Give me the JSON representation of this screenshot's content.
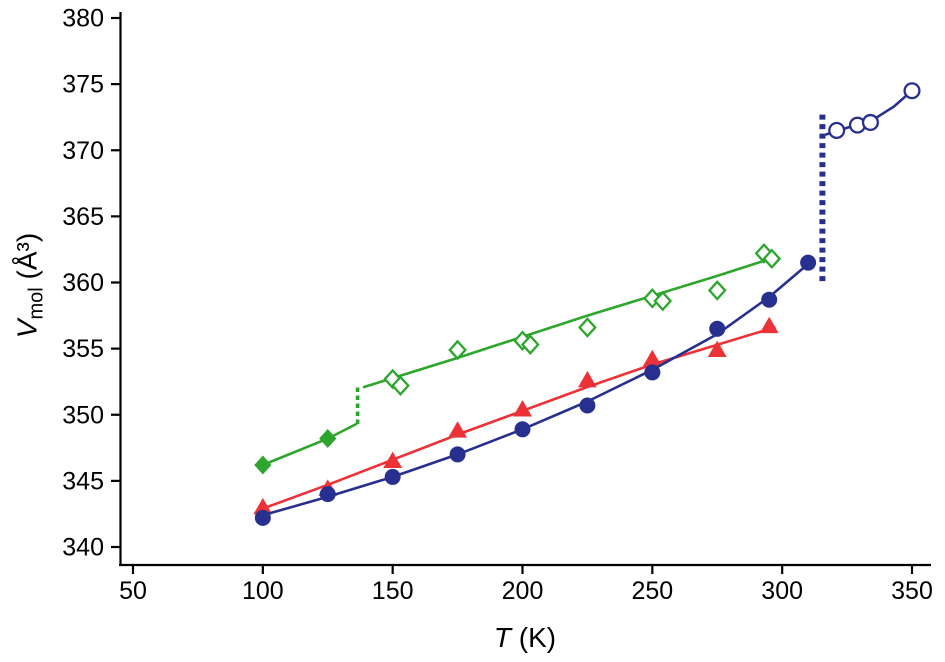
{
  "figure": {
    "background": "#ffffff",
    "axis_color": "#000000",
    "xlabel": {
      "symbol": "T",
      "units": " (K)"
    },
    "ylabel": {
      "symbol": "V",
      "subscript": "mol",
      "units": " (Å³)"
    }
  },
  "chart_data": {
    "type": "scatter",
    "title": "",
    "xlabel": "T (K)",
    "ylabel": "Vmol (Å³)",
    "xlim": [
      50,
      350
    ],
    "ylim": [
      340,
      380
    ],
    "x_ticks": [
      50,
      100,
      150,
      200,
      250,
      300,
      350
    ],
    "y_ticks": [
      340,
      345,
      350,
      355,
      360,
      365,
      370,
      375,
      380
    ],
    "grid": false,
    "legend": false,
    "series": [
      {
        "name": "green-filled-diamonds-low-T",
        "color": "#2ca62c",
        "marker": "diamond",
        "fill": "filled",
        "line_width": 2.6,
        "marker_points": [
          [
            100,
            346.2
          ],
          [
            125,
            348.2
          ]
        ],
        "line_points": [
          [
            100,
            346.2
          ],
          [
            125,
            348.2
          ],
          [
            136,
            349.3
          ]
        ]
      },
      {
        "name": "green-phase-transition-dashed",
        "type": "transition",
        "color": "#2ca62c",
        "x": 136.5,
        "y_from": 349.3,
        "y_to": 352.2,
        "line_width": 3.6,
        "dash": "4.5 3.5"
      },
      {
        "name": "green-open-diamonds-high-T",
        "color": "#2ca62c",
        "marker": "diamond",
        "fill": "open",
        "line_width": 2.6,
        "marker_points": [
          [
            150,
            352.7
          ],
          [
            153,
            352.2
          ],
          [
            175,
            354.9
          ],
          [
            200,
            355.6
          ],
          [
            203,
            355.3
          ],
          [
            225,
            356.6
          ],
          [
            250,
            358.8
          ],
          [
            254,
            358.6
          ],
          [
            275,
            359.4
          ],
          [
            293,
            362.2
          ],
          [
            296,
            361.8
          ]
        ],
        "line_points": [
          [
            139,
            352.1
          ],
          [
            175,
            354.3
          ],
          [
            225,
            357.5
          ],
          [
            275,
            360.5
          ],
          [
            297,
            361.9
          ]
        ]
      },
      {
        "name": "red-filled-triangles",
        "color": "#ed3237",
        "marker": "triangle",
        "fill": "filled",
        "line_width": 2.6,
        "marker_points": [
          [
            100,
            343.0
          ],
          [
            125,
            344.4
          ],
          [
            150,
            346.5
          ],
          [
            175,
            348.8
          ],
          [
            200,
            350.4
          ],
          [
            225,
            352.6
          ],
          [
            250,
            354.2
          ],
          [
            275,
            354.9
          ],
          [
            295,
            356.7
          ]
        ],
        "line_points": [
          [
            100,
            342.9
          ],
          [
            125,
            344.7
          ],
          [
            150,
            346.6
          ],
          [
            175,
            348.5
          ],
          [
            200,
            350.3
          ],
          [
            225,
            352.1
          ],
          [
            250,
            353.8
          ],
          [
            275,
            355.3
          ],
          [
            297,
            356.6
          ]
        ]
      },
      {
        "name": "blue-filled-circles-low-T",
        "color": "#28308f",
        "marker": "circle",
        "fill": "filled",
        "line_width": 2.6,
        "marker_points": [
          [
            100,
            342.2
          ],
          [
            125,
            344.0
          ],
          [
            150,
            345.3
          ],
          [
            175,
            347.0
          ],
          [
            200,
            348.9
          ],
          [
            225,
            350.7
          ],
          [
            250,
            353.2
          ],
          [
            275,
            356.5
          ],
          [
            295,
            358.7
          ],
          [
            310,
            361.5
          ]
        ],
        "line_points": [
          [
            100,
            342.4
          ],
          [
            125,
            343.8
          ],
          [
            150,
            345.3
          ],
          [
            175,
            347.0
          ],
          [
            200,
            348.9
          ],
          [
            225,
            351.0
          ],
          [
            250,
            353.4
          ],
          [
            275,
            356.1
          ],
          [
            295,
            358.9
          ],
          [
            310,
            361.4
          ]
        ]
      },
      {
        "name": "blue-phase-transition-dashed",
        "type": "transition",
        "color": "#28308f",
        "x": 315.5,
        "y_from": 360.1,
        "y_to": 372.7,
        "line_width": 6,
        "dash": "5 4.5"
      },
      {
        "name": "blue-open-circles-high-T",
        "color": "#28308f",
        "marker": "circle",
        "fill": "open",
        "line_width": 2.6,
        "marker_points": [
          [
            321,
            371.5
          ],
          [
            329,
            371.9
          ],
          [
            334,
            372.1
          ],
          [
            350,
            374.5
          ]
        ],
        "line_points": [
          [
            317,
            371.2
          ],
          [
            325,
            371.7
          ],
          [
            335,
            372.3
          ],
          [
            343,
            373.3
          ],
          [
            350,
            374.5
          ]
        ]
      }
    ]
  }
}
